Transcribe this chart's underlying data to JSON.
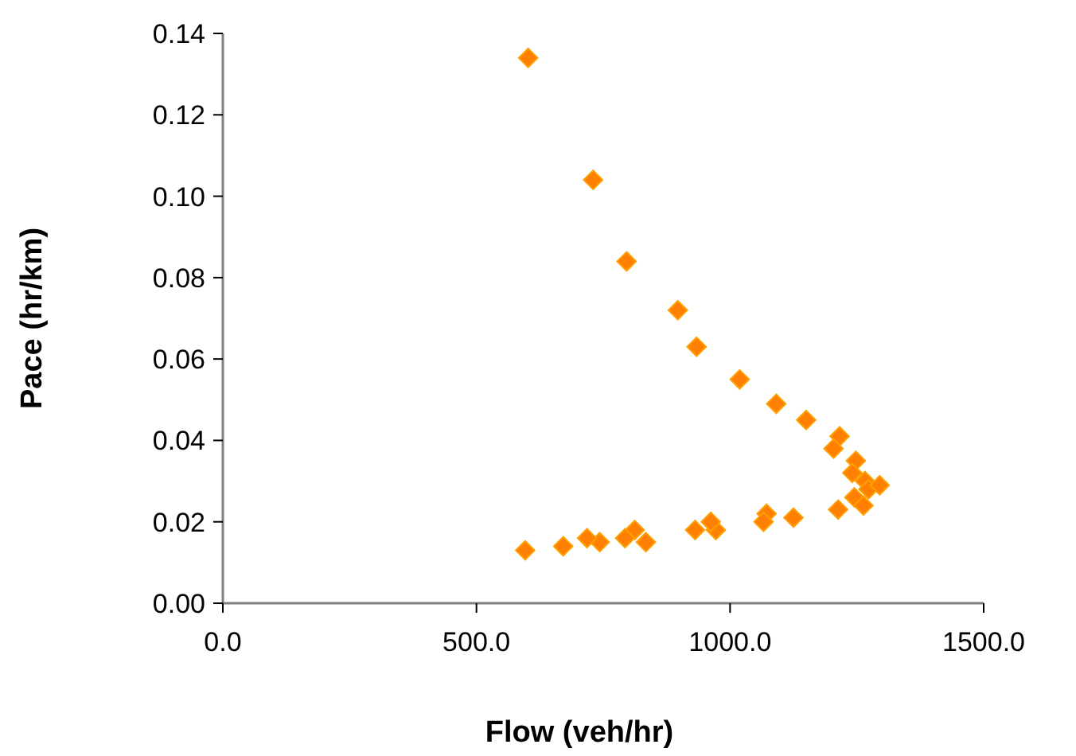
{
  "chart_data": {
    "type": "scatter",
    "xlabel": "Flow (veh/hr)",
    "ylabel": "Pace (hr/km)",
    "marker": "diamond",
    "xlim": [
      0,
      1500
    ],
    "xticks": [
      {
        "value": 0,
        "label": "0.0"
      },
      {
        "value": 500,
        "label": "500.0"
      },
      {
        "value": 1000,
        "label": "1000.0"
      },
      {
        "value": 1500,
        "label": "1500.0"
      }
    ],
    "ylim": [
      0,
      0.14
    ],
    "yticks": [
      {
        "value": 0,
        "label": "0.00"
      },
      {
        "value": 0.02,
        "label": "0.02"
      },
      {
        "value": 0.04,
        "label": "0.04"
      },
      {
        "value": 0.06,
        "label": "0.06"
      },
      {
        "value": 0.08,
        "label": "0.08"
      },
      {
        "value": 0.1,
        "label": "0.10"
      },
      {
        "value": 0.12,
        "label": "0.12"
      },
      {
        "value": 0.14,
        "label": "0.14"
      }
    ],
    "series": [
      {
        "color": "#ff7f00",
        "x": [
          602,
          730,
          796,
          897,
          934,
          1019,
          1091,
          1150,
          1216,
          1204,
          1248,
          1241,
          1266,
          1273,
          1295,
          1245,
          1263,
          1213,
          1125,
          1072,
          1066,
          972,
          962,
          931,
          834,
          812,
          793,
          743,
          718,
          671,
          596
        ],
        "values": [
          0.134,
          0.104,
          0.084,
          0.072,
          0.063,
          0.055,
          0.049,
          0.045,
          0.041,
          0.038,
          0.035,
          0.032,
          0.03,
          0.028,
          0.029,
          0.026,
          0.024,
          0.023,
          0.021,
          0.022,
          0.02,
          0.018,
          0.02,
          0.018,
          0.015,
          0.018,
          0.016,
          0.015,
          0.016,
          0.014,
          0.013
        ]
      }
    ]
  }
}
